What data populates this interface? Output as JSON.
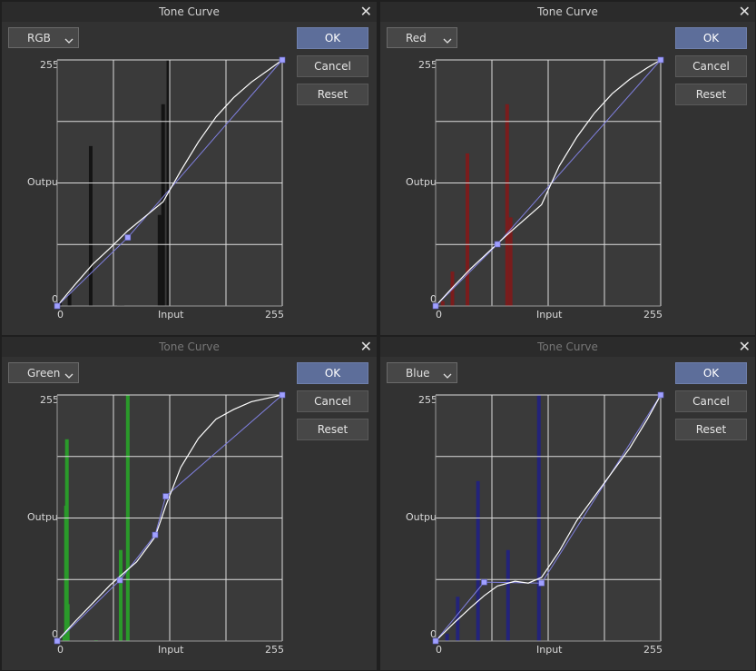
{
  "panels": [
    {
      "key": "rgb",
      "title": "Tone Curve",
      "title_dim": false,
      "channel": "RGB",
      "hist_color": "#141414",
      "hist": [
        [
          3,
          2
        ],
        [
          14,
          5
        ],
        [
          38,
          65
        ],
        [
          70,
          0.3
        ],
        [
          74,
          0.3
        ],
        [
          116,
          37
        ],
        [
          120,
          82
        ],
        [
          126,
          100
        ]
      ],
      "points": [
        [
          0,
          0
        ],
        [
          80,
          71
        ],
        [
          255,
          255
        ]
      ],
      "curve": [
        [
          0,
          0
        ],
        [
          20,
          22
        ],
        [
          40,
          43
        ],
        [
          60,
          60
        ],
        [
          80,
          78
        ],
        [
          100,
          93
        ],
        [
          120,
          108
        ],
        [
          140,
          140
        ],
        [
          160,
          170
        ],
        [
          180,
          196
        ],
        [
          200,
          216
        ],
        [
          220,
          232
        ],
        [
          240,
          245
        ],
        [
          255,
          255
        ]
      ]
    },
    {
      "key": "red",
      "title": "Tone Curve",
      "title_dim": false,
      "channel": "Red",
      "hist_color": "#7a1c1c",
      "hist": [
        [
          8,
          2
        ],
        [
          19,
          14
        ],
        [
          36,
          62
        ],
        [
          81,
          82
        ],
        [
          85,
          36
        ]
      ],
      "points": [
        [
          0,
          0
        ],
        [
          70,
          64
        ],
        [
          255,
          255
        ]
      ],
      "curve": [
        [
          0,
          0
        ],
        [
          20,
          20
        ],
        [
          40,
          39
        ],
        [
          60,
          56
        ],
        [
          80,
          73
        ],
        [
          100,
          89
        ],
        [
          120,
          105
        ],
        [
          140,
          145
        ],
        [
          160,
          175
        ],
        [
          180,
          200
        ],
        [
          200,
          220
        ],
        [
          220,
          235
        ],
        [
          240,
          247
        ],
        [
          255,
          255
        ]
      ]
    },
    {
      "key": "green",
      "title": "Tone Curve",
      "title_dim": true,
      "channel": "Green",
      "hist_color": "#2a9a2a",
      "hist": [
        [
          8,
          2
        ],
        [
          10,
          55
        ],
        [
          11,
          82
        ],
        [
          12,
          15
        ],
        [
          44,
          0.3
        ],
        [
          72,
          37
        ],
        [
          80,
          100
        ]
      ],
      "points": [
        [
          0,
          0
        ],
        [
          71,
          63
        ],
        [
          111,
          110
        ],
        [
          123,
          150
        ],
        [
          255,
          255
        ]
      ],
      "curve": [
        [
          0,
          0
        ],
        [
          20,
          20
        ],
        [
          40,
          39
        ],
        [
          60,
          58
        ],
        [
          71,
          67
        ],
        [
          90,
          82
        ],
        [
          111,
          108
        ],
        [
          123,
          140
        ],
        [
          140,
          180
        ],
        [
          160,
          210
        ],
        [
          180,
          230
        ],
        [
          200,
          240
        ],
        [
          220,
          248
        ],
        [
          240,
          252
        ],
        [
          255,
          255
        ]
      ]
    },
    {
      "key": "blue",
      "title": "Tone Curve",
      "title_dim": true,
      "channel": "Blue",
      "hist_color": "#23237a",
      "hist": [
        [
          13,
          3
        ],
        [
          25,
          18
        ],
        [
          48,
          65
        ],
        [
          82,
          37
        ],
        [
          117,
          100
        ]
      ],
      "points": [
        [
          0,
          0
        ],
        [
          55,
          61
        ],
        [
          120,
          60
        ],
        [
          255,
          255
        ]
      ],
      "curve": [
        [
          0,
          0
        ],
        [
          20,
          18
        ],
        [
          40,
          35
        ],
        [
          55,
          47
        ],
        [
          70,
          57
        ],
        [
          90,
          62
        ],
        [
          105,
          60
        ],
        [
          120,
          66
        ],
        [
          140,
          93
        ],
        [
          160,
          125
        ],
        [
          180,
          150
        ],
        [
          200,
          175
        ],
        [
          220,
          200
        ],
        [
          240,
          230
        ],
        [
          255,
          255
        ]
      ]
    }
  ],
  "labels": {
    "ok": "OK",
    "cancel": "Cancel",
    "reset": "Reset",
    "output": "Output",
    "input": "Input",
    "max": "255",
    "min": "0"
  },
  "colors": {
    "control_point": "#a0a0ff",
    "control_line": "#8080e0",
    "curve": "#ffffff",
    "ok_button": "#5d6e9a",
    "grid": "#dcdcdc"
  },
  "icons": {
    "close": "close-icon",
    "dropdown": "chevron-down-icon"
  }
}
